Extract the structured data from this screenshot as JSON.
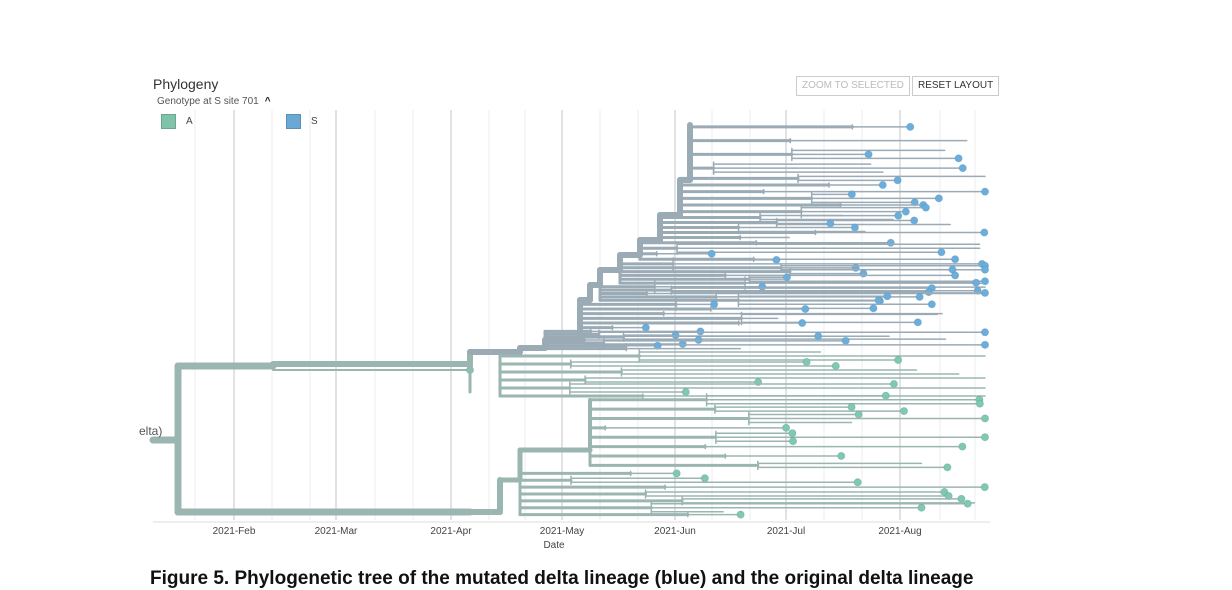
{
  "panel": {
    "title": "Phylogeny",
    "color_by": "Genotype at S site 701",
    "color_by_icon": "chevron-up-icon",
    "zoom_to_selected": "ZOOM TO SELECTED",
    "reset_layout": "RESET LAYOUT"
  },
  "legend": [
    {
      "label": "A",
      "color": "#7fc3aa"
    },
    {
      "label": "S",
      "color": "#6aa9d6"
    }
  ],
  "axis": {
    "label": "Date",
    "ticks": [
      "2021-Feb",
      "2021-Mar",
      "2021-Apr",
      "2021-May",
      "2021-Jun",
      "2021-Jul",
      "2021-Aug"
    ]
  },
  "root_label": "elta)",
  "colors": {
    "branch_A": "#9bb5b0",
    "branch_S": "#9aabb6",
    "tip_A": "#7fc9ad",
    "tip_S": "#6aaede"
  },
  "caption": "Figure 5. Phylogenetic tree of the mutated delta lineage (blue) and the original delta lineage"
}
